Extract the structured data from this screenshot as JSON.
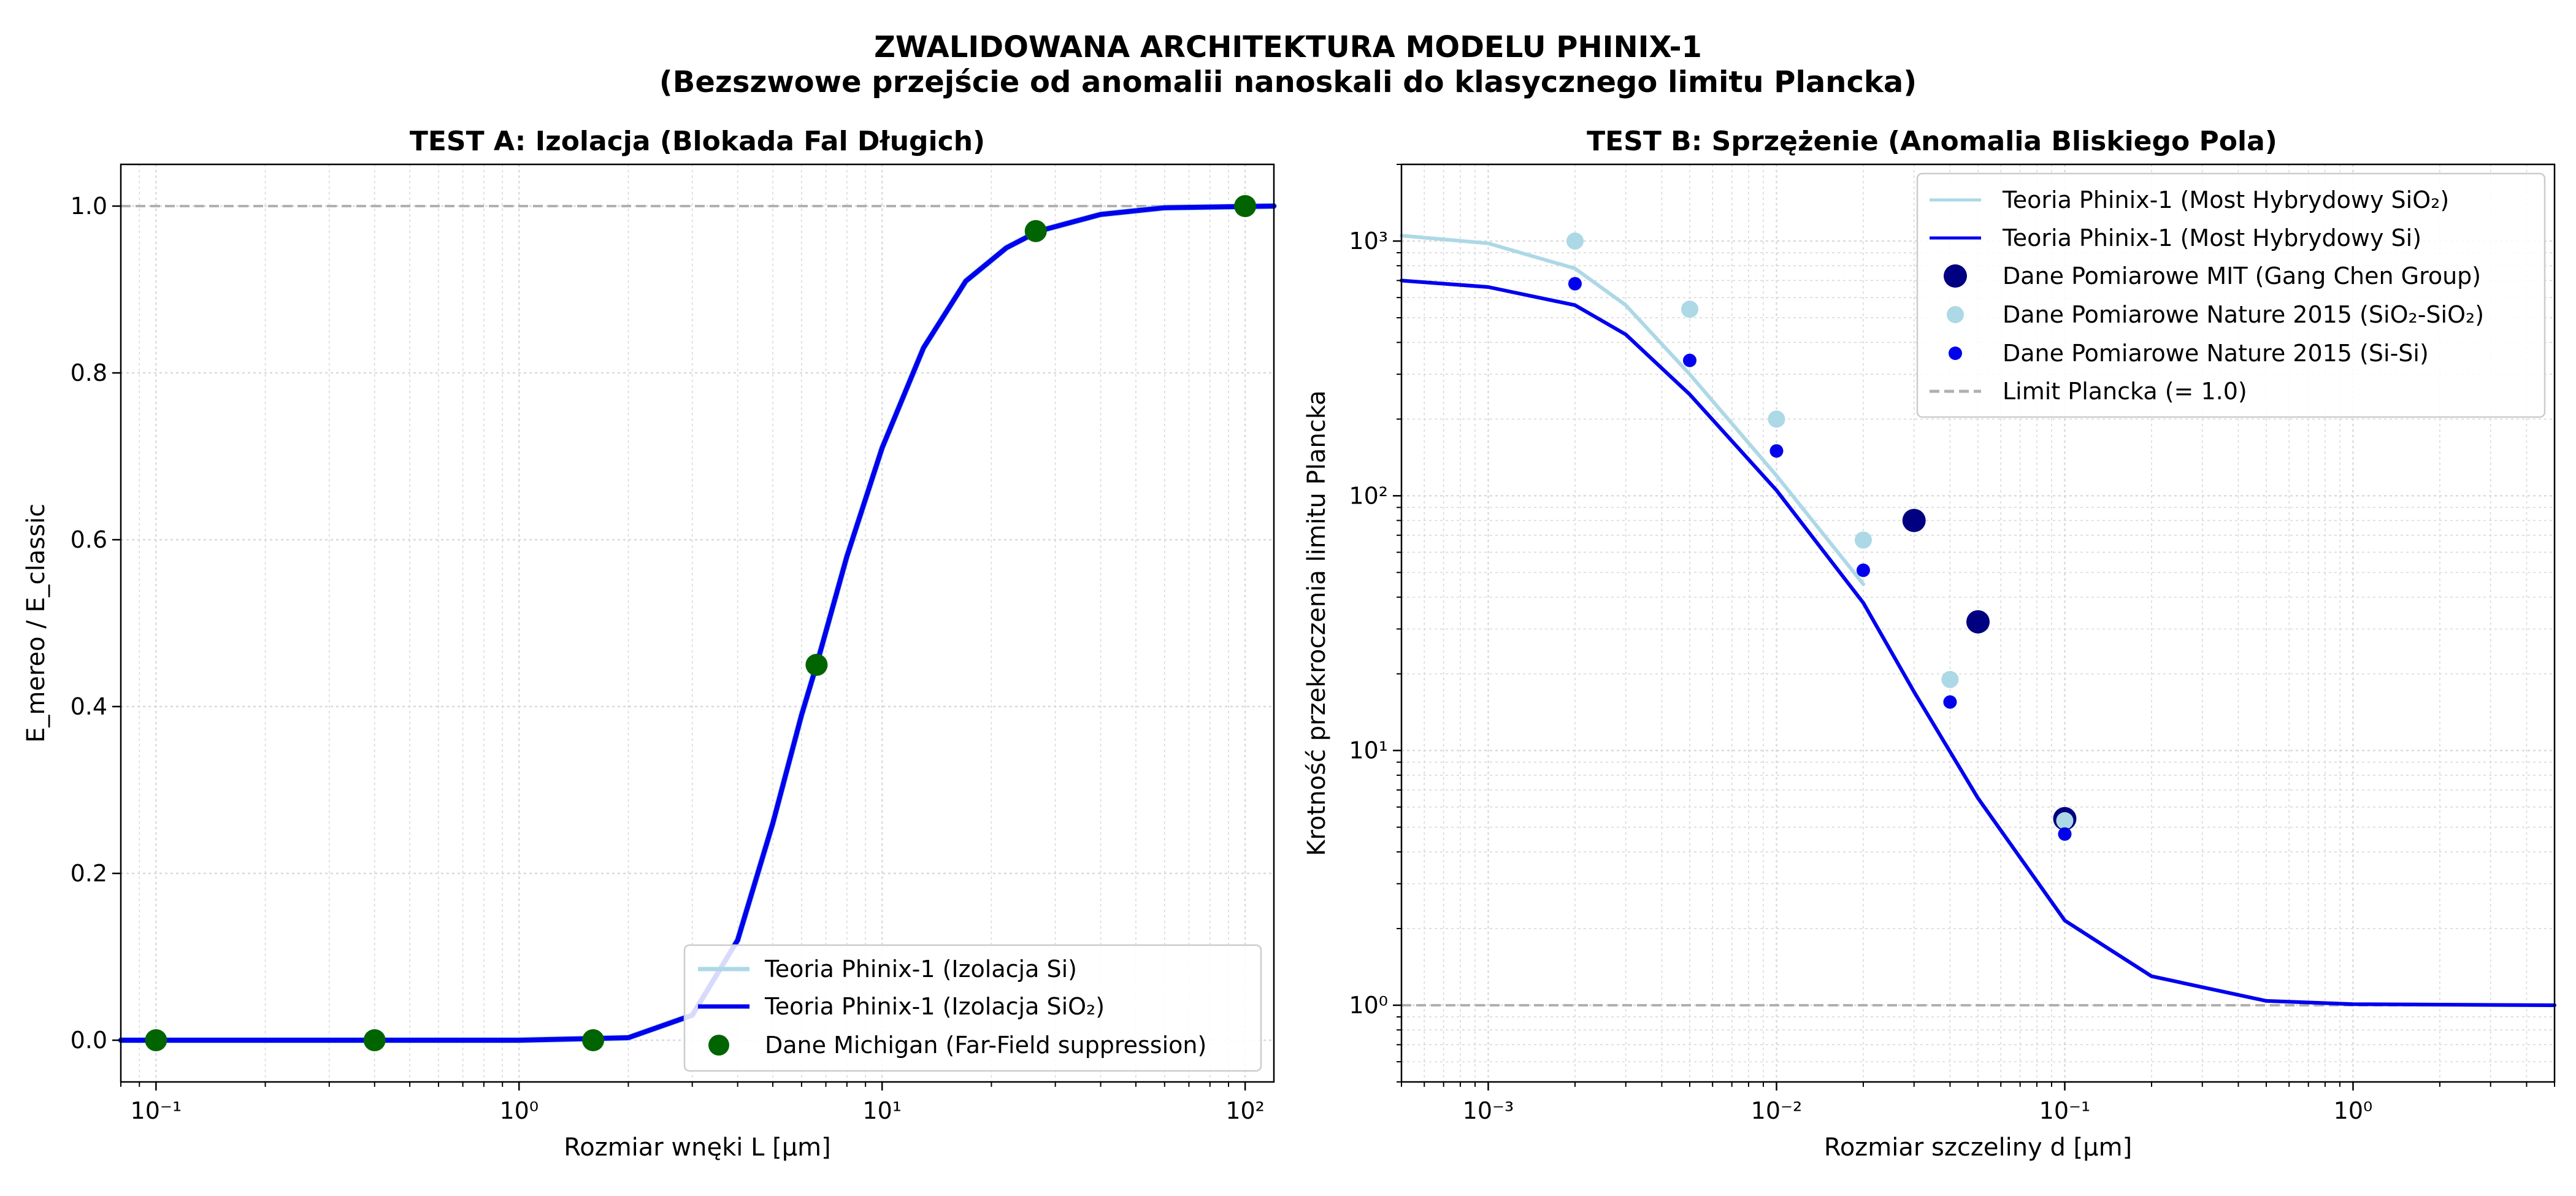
{
  "suptitle": {
    "line1": "ZWALIDOWANA ARCHITEKTURA MODELU PHINIX-1",
    "line2": "(Bezszwowe przejście od anomalii nanoskali do klasycznego limitu Plancka)"
  },
  "colors": {
    "light_blue": "#add8e6",
    "blue": "#0000ee",
    "navy": "#000080",
    "dark_green": "#006400",
    "ref_gray": "#b0b0b0"
  },
  "chart_data": [
    {
      "type": "line",
      "title": "TEST A: Izolacja (Blokada Fal Długich)",
      "xlabel": "Rozmiar wnęki L [μm]",
      "ylabel": "E_mereo / E_classic",
      "xscale": "log",
      "xlim": [
        0.08,
        120
      ],
      "ylim": [
        -0.05,
        1.05
      ],
      "xticks": [
        "10⁻¹",
        "10⁰",
        "10¹",
        "10²"
      ],
      "yticks": [
        "0.0",
        "0.2",
        "0.4",
        "0.6",
        "0.8",
        "1.0"
      ],
      "grid": true,
      "reference_line": {
        "y": 1.0,
        "style": "dashed"
      },
      "series": [
        {
          "name": "Teoria Phinix-1 (Izolacja Si)",
          "kind": "line",
          "x": [
            0.08,
            1.0,
            2.0,
            3.0,
            4.0,
            5.0,
            6.0,
            6.6,
            8.0,
            10.0,
            13.0,
            17.0,
            22.0,
            27.0,
            40.0,
            60.0,
            120.0
          ],
          "y": [
            0.0,
            0.0,
            0.003,
            0.03,
            0.12,
            0.26,
            0.39,
            0.45,
            0.58,
            0.71,
            0.83,
            0.91,
            0.95,
            0.97,
            0.99,
            0.998,
            1.0
          ]
        },
        {
          "name": "Teoria Phinix-1 (Izolacja SiO₂)",
          "kind": "line",
          "x": [
            0.08,
            1.0,
            2.0,
            3.0,
            4.0,
            5.0,
            6.0,
            6.6,
            8.0,
            10.0,
            13.0,
            17.0,
            22.0,
            27.0,
            40.0,
            60.0,
            120.0
          ],
          "y": [
            0.0,
            0.0,
            0.003,
            0.03,
            0.12,
            0.26,
            0.39,
            0.45,
            0.58,
            0.71,
            0.83,
            0.91,
            0.95,
            0.97,
            0.99,
            0.998,
            1.0
          ]
        },
        {
          "name": "Dane Michigan (Far-Field suppression)",
          "kind": "scatter",
          "x": [
            0.1,
            0.4,
            1.6,
            6.6,
            26.5,
            100.0
          ],
          "y": [
            0.0,
            0.0,
            0.0,
            0.45,
            0.97,
            1.0
          ]
        }
      ],
      "legend_position": "lower-right"
    },
    {
      "type": "line",
      "title": "TEST B: Sprzężenie (Anomalia Bliskiego Pola)",
      "xlabel": "Rozmiar szczeliny d [μm]",
      "ylabel": "Krotność przekroczenia limitu Plancka",
      "xscale": "log",
      "yscale": "log",
      "xlim": [
        0.0005,
        5
      ],
      "ylim": [
        0.5,
        2000
      ],
      "xticks": [
        "10⁻³",
        "10⁻²",
        "10⁻¹",
        "10⁰"
      ],
      "yticks": [
        "10⁰",
        "10¹",
        "10²",
        "10³"
      ],
      "grid": true,
      "reference_line": {
        "y": 1.0,
        "style": "dashed"
      },
      "series": [
        {
          "name": "Teoria Phinix-1 (Most Hybrydowy SiO₂)",
          "kind": "line",
          "x": [
            0.0005,
            0.001,
            0.002,
            0.003,
            0.005,
            0.01,
            0.02
          ],
          "y": [
            1050,
            980,
            780,
            560,
            300,
            120,
            45
          ]
        },
        {
          "name": "Teoria Phinix-1 (Most Hybrydowy Si)",
          "kind": "line",
          "x": [
            0.0005,
            0.001,
            0.002,
            0.003,
            0.005,
            0.01,
            0.02,
            0.03,
            0.05,
            0.1,
            0.2,
            0.5,
            1.0,
            5.0
          ],
          "y": [
            700,
            660,
            560,
            430,
            250,
            105,
            38,
            17,
            6.5,
            2.15,
            1.3,
            1.04,
            1.01,
            1.0
          ]
        },
        {
          "name": "Dane Pomiarowe MIT (Gang Chen Group)",
          "kind": "scatter",
          "x": [
            0.03,
            0.05,
            0.1
          ],
          "y": [
            80,
            32,
            5.4
          ]
        },
        {
          "name": "Dane Pomiarowe Nature 2015 (SiO₂-SiO₂)",
          "kind": "scatter",
          "x": [
            0.002,
            0.005,
            0.01,
            0.02,
            0.04,
            0.1
          ],
          "y": [
            1000,
            540,
            200,
            67,
            19,
            5.3
          ]
        },
        {
          "name": "Dane Pomiarowe Nature 2015 (Si-Si)",
          "kind": "scatter",
          "x": [
            0.002,
            0.005,
            0.01,
            0.02,
            0.04,
            0.1
          ],
          "y": [
            680,
            340,
            150,
            51,
            15.5,
            4.7
          ]
        },
        {
          "name": "Limit Plancka (= 1.0)",
          "kind": "reference"
        }
      ],
      "legend_position": "upper-right"
    }
  ]
}
